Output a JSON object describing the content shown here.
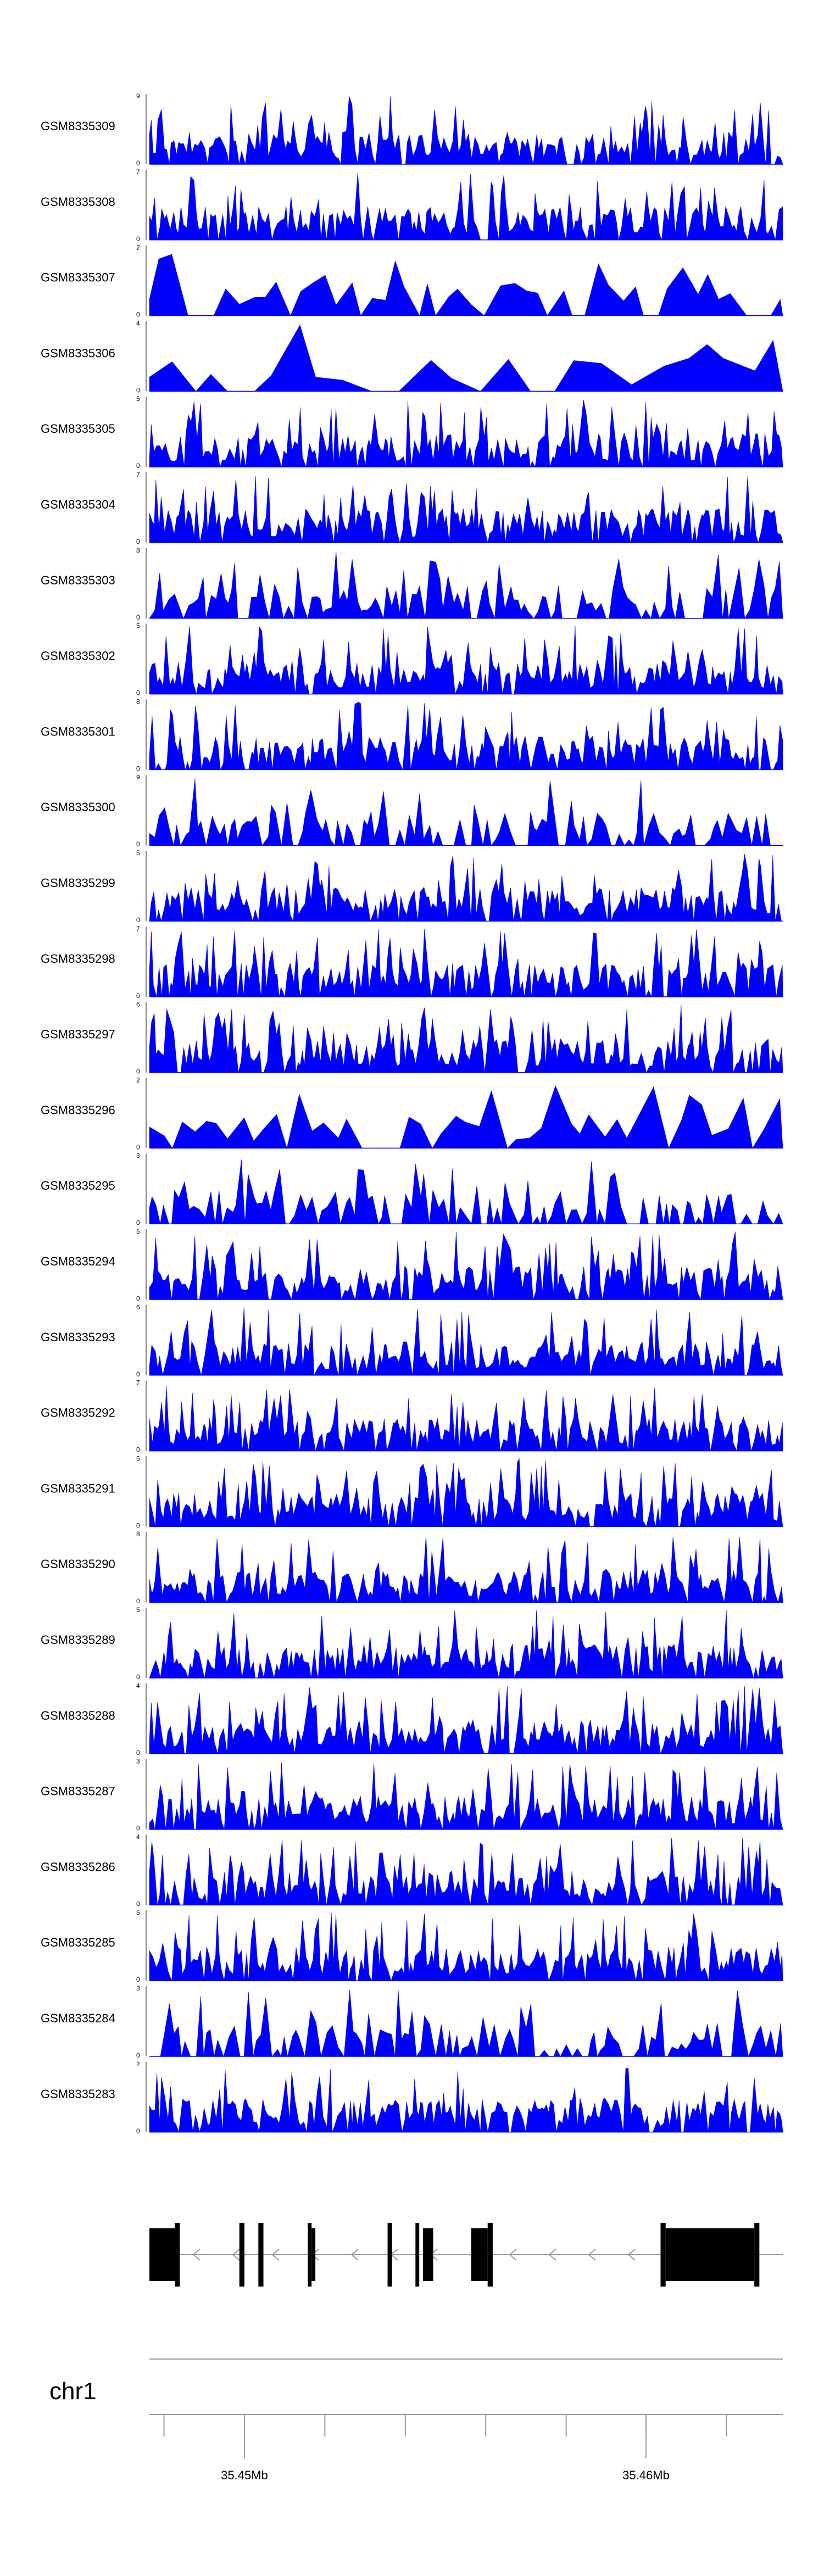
{
  "chart_data": {
    "type": "area",
    "title": "",
    "color": "#0000ff",
    "tracks": [
      {
        "name": "GSM8335309",
        "ymax": "9",
        "ymin": "0",
        "seed": 11,
        "style": "dense"
      },
      {
        "name": "GSM8335308",
        "ymax": "7",
        "ymin": "0",
        "seed": 23,
        "style": "dense"
      },
      {
        "name": "GSM8335307",
        "ymax": "2",
        "ymin": "0",
        "seed": 37,
        "style": "sparse"
      },
      {
        "name": "GSM8335306",
        "ymax": "4",
        "ymin": "0",
        "seed": 41,
        "style": "verysparse"
      },
      {
        "name": "GSM8335305",
        "ymax": "5",
        "ymin": "0",
        "seed": 53,
        "style": "dense"
      },
      {
        "name": "GSM8335304",
        "ymax": "7",
        "ymin": "0",
        "seed": 67,
        "style": "dense"
      },
      {
        "name": "GSM8335303",
        "ymax": "8",
        "ymin": "0",
        "seed": 71,
        "style": "medium"
      },
      {
        "name": "GSM8335302",
        "ymax": "5",
        "ymin": "0",
        "seed": 83,
        "style": "dense"
      },
      {
        "name": "GSM8335301",
        "ymax": "8",
        "ymin": "0",
        "seed": 97,
        "style": "dense"
      },
      {
        "name": "GSM8335300",
        "ymax": "9",
        "ymin": "0",
        "seed": 101,
        "style": "medium"
      },
      {
        "name": "GSM8335299",
        "ymax": "5",
        "ymin": "0",
        "seed": 113,
        "style": "dense"
      },
      {
        "name": "GSM8335298",
        "ymax": "7",
        "ymin": "0",
        "seed": 127,
        "style": "dense"
      },
      {
        "name": "GSM8335297",
        "ymax": "6",
        "ymin": "0",
        "seed": 131,
        "style": "dense"
      },
      {
        "name": "GSM8335296",
        "ymax": "2",
        "ymin": "0",
        "seed": 139,
        "style": "sparse"
      },
      {
        "name": "GSM8335295",
        "ymax": "3",
        "ymin": "0",
        "seed": 149,
        "style": "medium"
      },
      {
        "name": "GSM8335294",
        "ymax": "5",
        "ymin": "0",
        "seed": 157,
        "style": "dense"
      },
      {
        "name": "GSM8335293",
        "ymax": "6",
        "ymin": "0",
        "seed": 163,
        "style": "dense"
      },
      {
        "name": "GSM8335292",
        "ymax": "7",
        "ymin": "0",
        "seed": 173,
        "style": "dense"
      },
      {
        "name": "GSM8335291",
        "ymax": "5",
        "ymin": "0",
        "seed": 181,
        "style": "dense"
      },
      {
        "name": "GSM8335290",
        "ymax": "8",
        "ymin": "0",
        "seed": 191,
        "style": "dense"
      },
      {
        "name": "GSM8335289",
        "ymax": "5",
        "ymin": "0",
        "seed": 197,
        "style": "dense"
      },
      {
        "name": "GSM8335288",
        "ymax": "4",
        "ymin": "0",
        "seed": 211,
        "style": "dense"
      },
      {
        "name": "GSM8335287",
        "ymax": "3",
        "ymin": "0",
        "seed": 223,
        "style": "dense"
      },
      {
        "name": "GSM8335286",
        "ymax": "4",
        "ymin": "0",
        "seed": 227,
        "style": "dense"
      },
      {
        "name": "GSM8335285",
        "ymax": "5",
        "ymin": "0",
        "seed": 233,
        "style": "dense"
      },
      {
        "name": "GSM8335284",
        "ymax": "3",
        "ymin": "0",
        "seed": 239,
        "style": "medium"
      },
      {
        "name": "GSM8335283",
        "ymax": "2",
        "ymin": "0",
        "seed": 241,
        "style": "dense"
      }
    ],
    "gene_model": {
      "strand": "-",
      "exons": [
        {
          "start": 0.0,
          "end": 0.04,
          "size": "utr"
        },
        {
          "start": 0.04,
          "end": 0.048,
          "size": "cds"
        },
        {
          "start": 0.142,
          "end": 0.15,
          "size": "cds"
        },
        {
          "start": 0.172,
          "end": 0.18,
          "size": "cds"
        },
        {
          "start": 0.25,
          "end": 0.256,
          "size": "cds"
        },
        {
          "start": 0.256,
          "end": 0.262,
          "size": "utr"
        },
        {
          "start": 0.376,
          "end": 0.383,
          "size": "cds"
        },
        {
          "start": 0.42,
          "end": 0.426,
          "size": "cds"
        },
        {
          "start": 0.432,
          "end": 0.448,
          "size": "utr"
        },
        {
          "start": 0.508,
          "end": 0.534,
          "size": "utr"
        },
        {
          "start": 0.534,
          "end": 0.542,
          "size": "cds"
        },
        {
          "start": 0.807,
          "end": 0.815,
          "size": "cds"
        },
        {
          "start": 0.815,
          "end": 0.955,
          "size": "utr"
        },
        {
          "start": 0.955,
          "end": 0.963,
          "size": "cds"
        }
      ]
    },
    "chromosome": "chr1",
    "axis": {
      "major_ticks": [
        {
          "pos": 0.15,
          "label": "35.45Mb"
        },
        {
          "pos": 0.784,
          "label": "35.46Mb"
        }
      ],
      "minor_ticks": [
        0.023,
        0.15,
        0.277,
        0.404,
        0.531,
        0.658,
        0.784,
        0.911
      ]
    }
  }
}
